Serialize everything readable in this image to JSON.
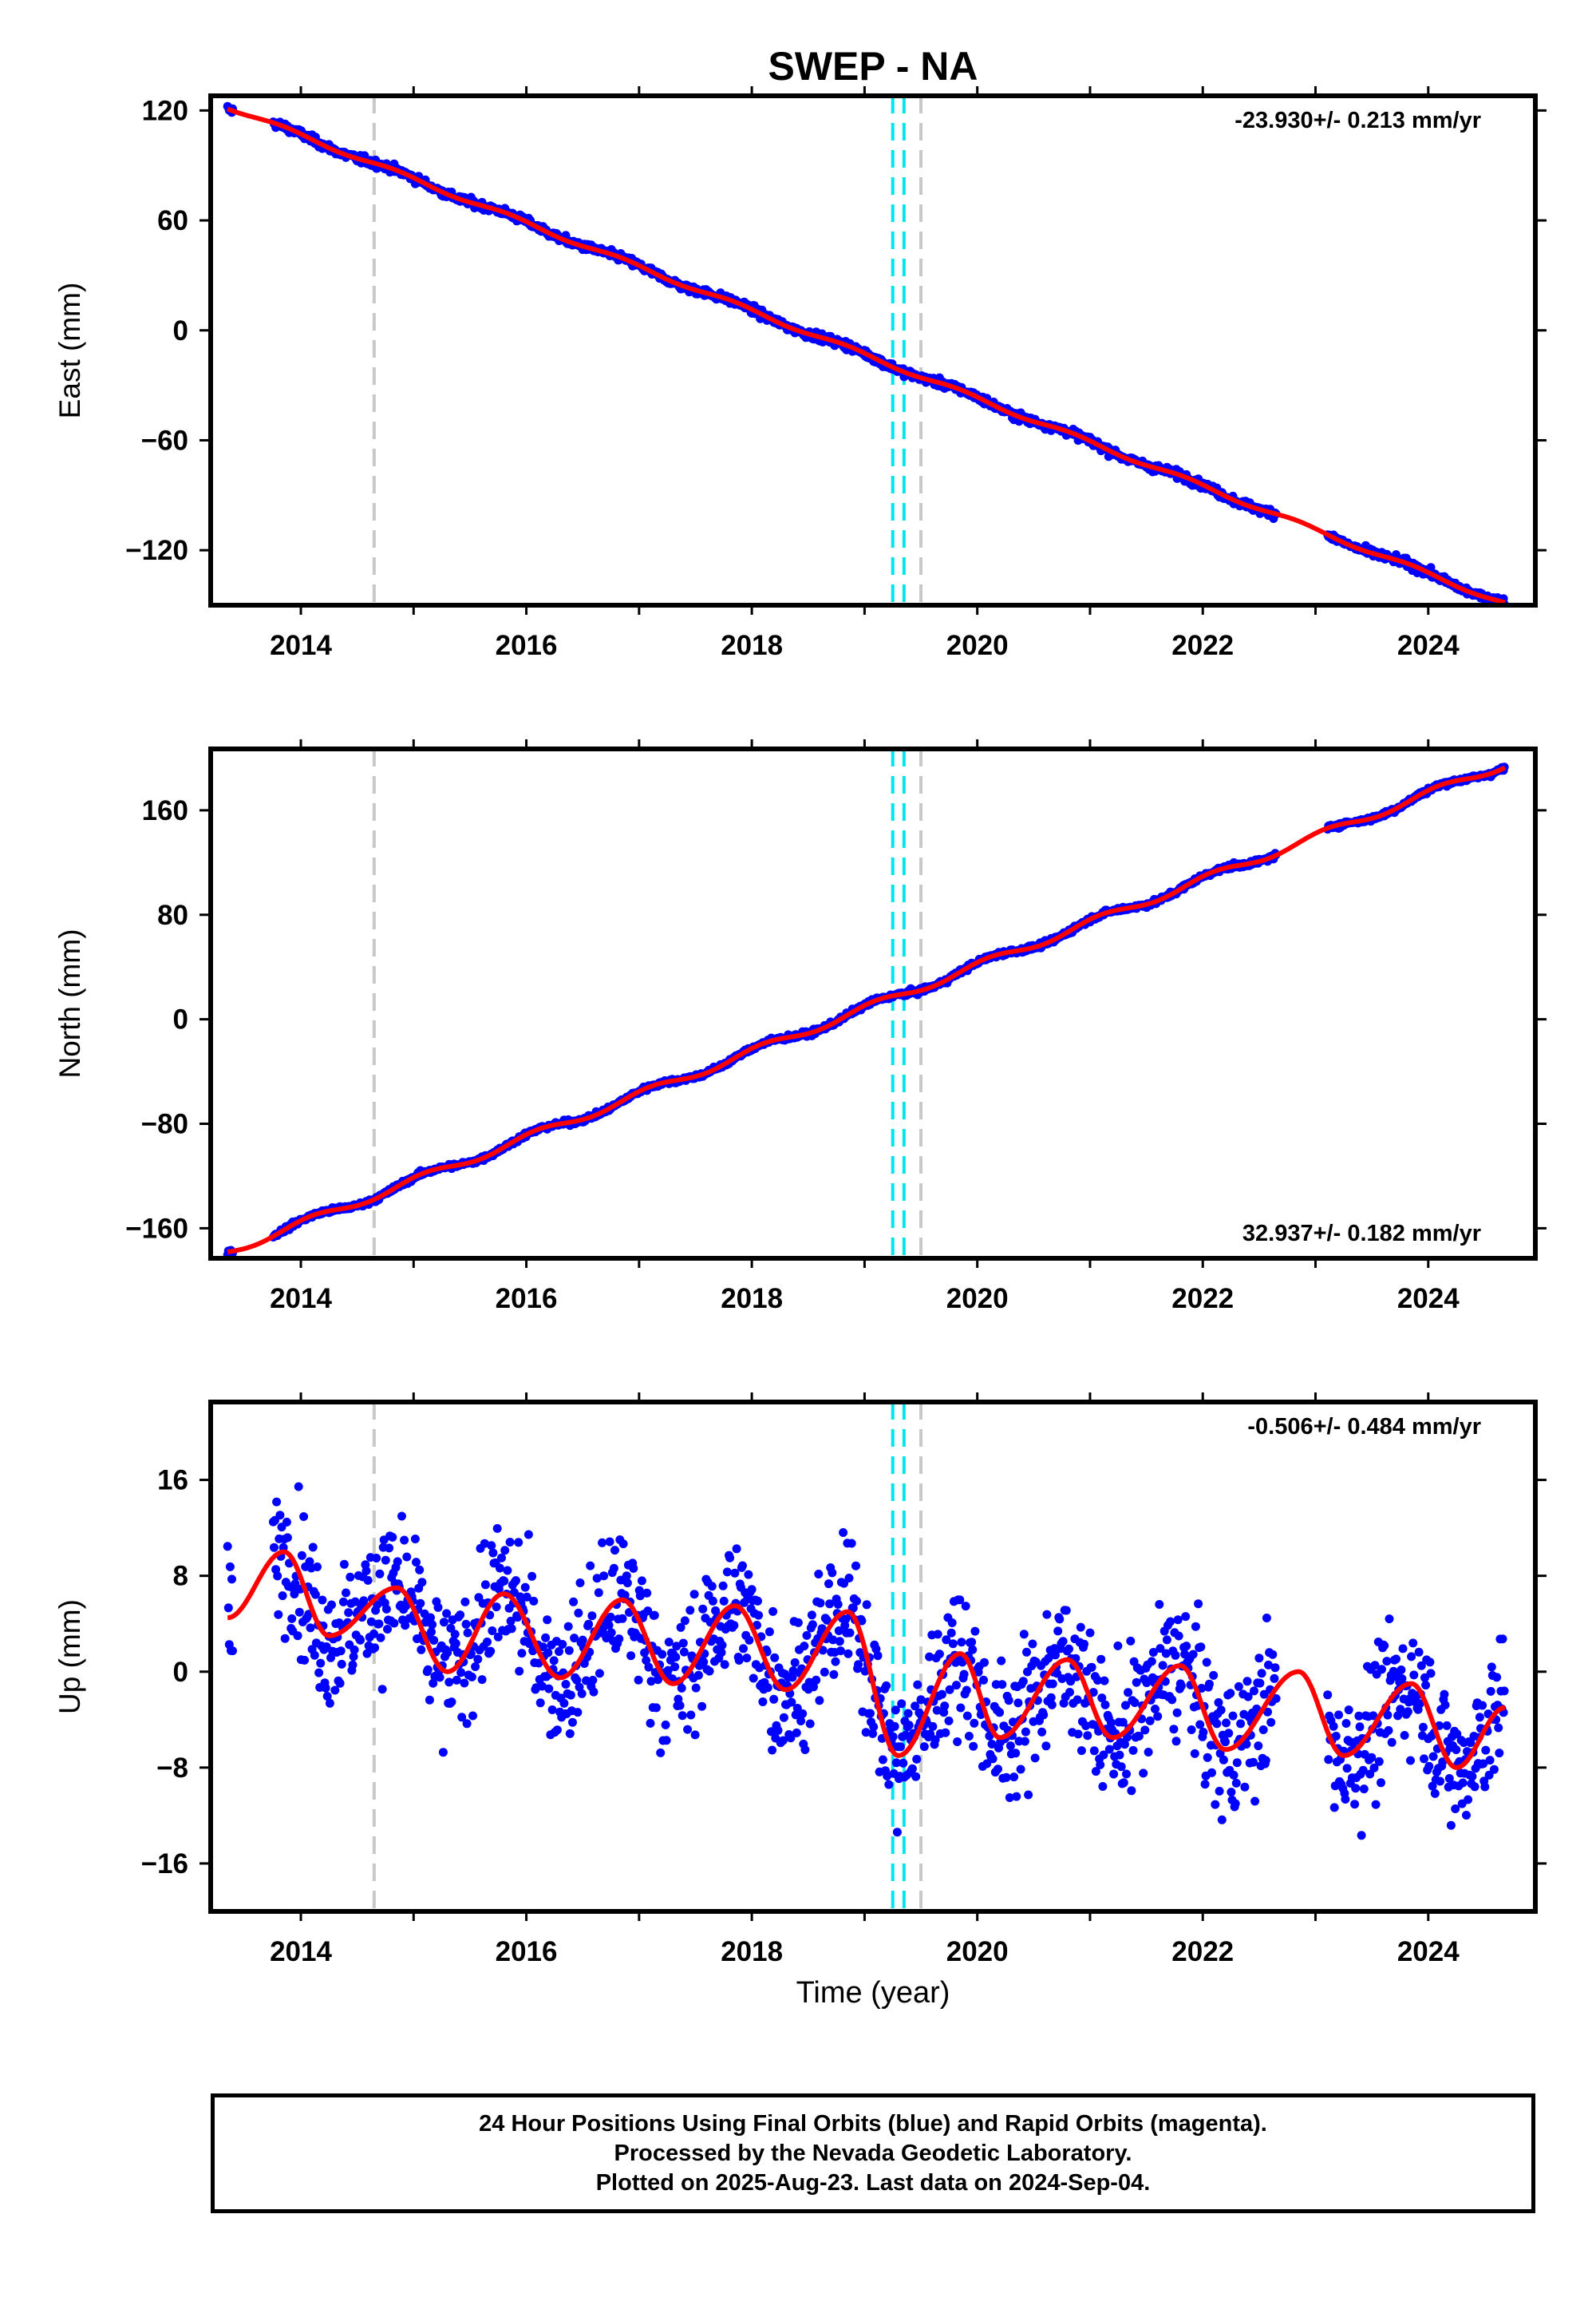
{
  "title": "SWEP - NA",
  "colors": {
    "points": "#0000ff",
    "model": "#ff0000",
    "cyan_marker": "#00e5ee",
    "gray_marker": "#c8c8c8"
  },
  "markers": {
    "gray": [
      2014.65,
      2019.5
    ],
    "cyan": [
      2019.25,
      2019.35
    ]
  },
  "xaxis": {
    "label": "Time (year)",
    "ticks": [
      "2014",
      "2016",
      "2018",
      "2020",
      "2022",
      "2024"
    ],
    "range": [
      2013.2,
      2024.95
    ]
  },
  "footer": {
    "line1": "24 Hour Positions Using Final Orbits (blue) and Rapid Orbits (magenta).",
    "line2": "Processed by the Nevada Geodetic Laboratory.",
    "line3": "Plotted on 2025-Aug-23. Last data on 2024-Sep-04."
  },
  "chart_data": [
    {
      "type": "scatter",
      "panel": "east",
      "ylabel": "East (mm)",
      "yticks": [
        "120",
        "60",
        "0",
        "−60",
        "−120"
      ],
      "ylim": [
        -150,
        128
      ],
      "rate_label": "-23.930+/- 0.213 mm/yr",
      "rate_position": "top-right",
      "trend": {
        "slope": -23.93,
        "t0": 2013.35,
        "y0": 122,
        "amplitude": 1.2,
        "phase": 2.5,
        "scatter": 2.8
      },
      "series": [
        {
          "values": [
            [
              2013.35,
              122
            ],
            [
              2014.0,
              108
            ],
            [
              2015.0,
              90
            ],
            [
              2016.0,
              66
            ],
            [
              2017.0,
              42
            ],
            [
              2018.0,
              18
            ],
            [
              2019.0,
              -6
            ],
            [
              2020.0,
              -30
            ],
            [
              2021.0,
              -54
            ],
            [
              2022.0,
              -78
            ],
            [
              2023.0,
              -102
            ],
            [
              2024.0,
              -126
            ],
            [
              2024.68,
              -143
            ]
          ]
        }
      ]
    },
    {
      "type": "scatter",
      "panel": "north",
      "ylabel": "North (mm)",
      "yticks": [
        "160",
        "80",
        "0",
        "−80",
        "−160"
      ],
      "ylim": [
        -183,
        207
      ],
      "rate_label": "32.937+/- 0.182 mm/yr",
      "rate_position": "bottom-right",
      "trend": {
        "slope": 32.937,
        "t0": 2013.35,
        "y0": -178,
        "amplitude": 3.0,
        "phase": 1.0,
        "scatter": 2.5
      },
      "series": [
        {
          "values": [
            [
              2013.35,
              -178
            ],
            [
              2014.0,
              -160
            ],
            [
              2015.0,
              -128
            ],
            [
              2016.0,
              -95
            ],
            [
              2017.0,
              -62
            ],
            [
              2018.0,
              -30
            ],
            [
              2019.0,
              5
            ],
            [
              2020.0,
              36
            ],
            [
              2021.0,
              70
            ],
            [
              2022.0,
              103
            ],
            [
              2023.0,
              135
            ],
            [
              2024.0,
              168
            ],
            [
              2024.68,
              198
            ]
          ]
        }
      ]
    },
    {
      "type": "scatter",
      "panel": "up",
      "ylabel": "Up (mm)",
      "yticks": [
        "16",
        "8",
        "0",
        "−8",
        "−16"
      ],
      "ylim": [
        -20,
        22.5
      ],
      "rate_label": "-0.506+/- 0.484 mm/yr",
      "rate_position": "top-right",
      "trend": {
        "slope": -0.506,
        "t0": 2013.35,
        "y0": 5.5,
        "amplitude": 4.5,
        "phase": -0.4,
        "scatter": 4.0
      },
      "series": [
        {
          "values": [
            [
              2013.35,
              4.5
            ],
            [
              2013.85,
              10
            ],
            [
              2014.25,
              3
            ],
            [
              2014.85,
              7
            ],
            [
              2015.3,
              0
            ],
            [
              2015.8,
              6.5
            ],
            [
              2016.3,
              -0.5
            ],
            [
              2016.85,
              6
            ],
            [
              2017.3,
              -1
            ],
            [
              2017.85,
              5.5
            ],
            [
              2018.3,
              -1.5
            ],
            [
              2018.85,
              5
            ],
            [
              2019.3,
              -7
            ],
            [
              2019.85,
              1.5
            ],
            [
              2020.2,
              -5.5
            ],
            [
              2020.8,
              1
            ],
            [
              2021.2,
              -5.5
            ],
            [
              2021.8,
              0.5
            ],
            [
              2022.2,
              -6.5
            ],
            [
              2022.85,
              0
            ],
            [
              2023.25,
              -7
            ],
            [
              2023.85,
              -1
            ],
            [
              2024.25,
              -8
            ],
            [
              2024.68,
              -3
            ]
          ]
        }
      ]
    }
  ]
}
